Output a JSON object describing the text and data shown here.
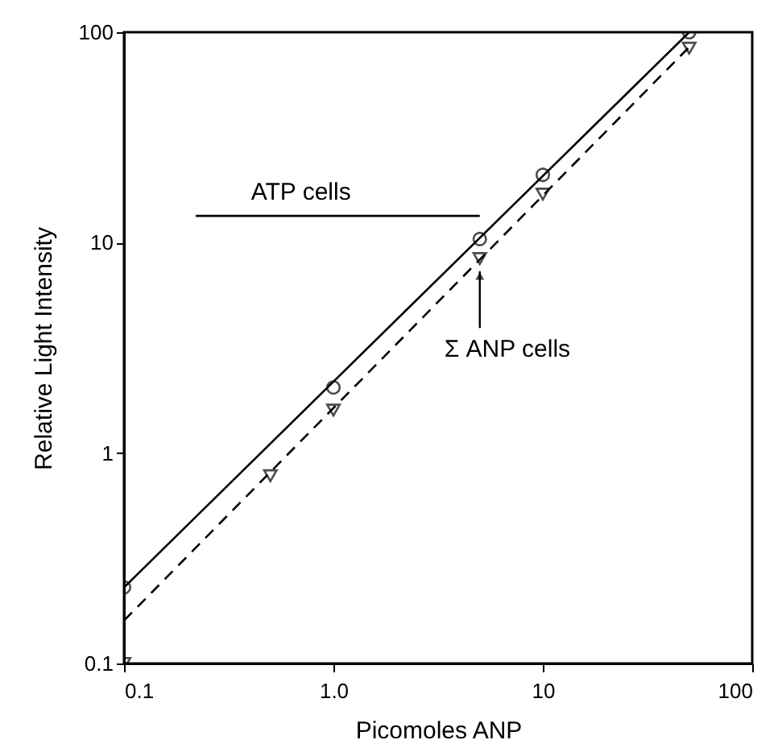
{
  "chart_data": {
    "type": "scatter",
    "xlabel": "Picomoles  ANP",
    "ylabel": "Relative Light Intensity",
    "log": "xy",
    "xlim": [
      0.1,
      100
    ],
    "ylim": [
      0.1,
      100
    ],
    "xticks": [
      0.1,
      {
        "value": 1,
        "label": "1.0"
      },
      10,
      100
    ],
    "yticks": [
      0.1,
      1,
      10,
      100
    ],
    "grid": false,
    "series": [
      {
        "type": "line",
        "color": "#000000",
        "line_style": "solid",
        "marker": "none",
        "x": [
          0.1,
          50
        ],
        "values": [
          0.23,
          100
        ]
      },
      {
        "type": "line",
        "color": "#000000",
        "line_style": "dashed",
        "marker": "none",
        "x": [
          0.1,
          50
        ],
        "values": [
          0.16,
          85
        ]
      },
      {
        "type": "line",
        "color": "#000000",
        "line_style": "solid",
        "marker": "none",
        "x": [
          0.22,
          5
        ],
        "values": [
          13.4,
          13.4
        ]
      },
      {
        "color": "#000000",
        "marker": "circle",
        "x": [
          0.1,
          1,
          5,
          10,
          50
        ],
        "values": [
          0.23,
          2.05,
          10.4,
          21,
          100
        ]
      },
      {
        "color": "#000000",
        "marker": "triangle",
        "x": [
          0.1,
          0.5,
          1,
          5,
          10,
          50
        ],
        "values": [
          0.1,
          0.78,
          1.6,
          8.4,
          17,
          84
        ]
      }
    ],
    "annotations": [
      {
        "text": "ATP cells",
        "x": 0.7,
        "y": 13.4
      },
      {
        "text": "Σ ANP cells",
        "x": 5,
        "y": 8.4
      }
    ]
  }
}
